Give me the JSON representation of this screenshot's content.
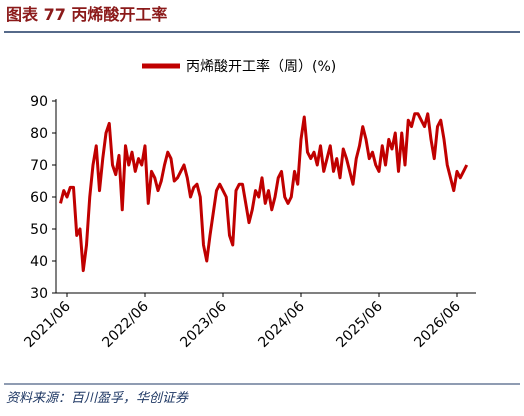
{
  "header": {
    "title": "图表 77 丙烯酸开工率"
  },
  "chart_data": {
    "type": "line",
    "categories": [
      null,
      null,
      "2021/06",
      null,
      null,
      null,
      null,
      null,
      null,
      null,
      null,
      null,
      null,
      null,
      null,
      null,
      null,
      null,
      null,
      null,
      null,
      null,
      null,
      null,
      null,
      null,
      "2022/06",
      null,
      null,
      null,
      null,
      null,
      null,
      null,
      null,
      null,
      null,
      null,
      null,
      null,
      null,
      null,
      null,
      null,
      null,
      null,
      null,
      null,
      null,
      null,
      "2023/06",
      null,
      null,
      null,
      null,
      null,
      null,
      null,
      null,
      null,
      null,
      null,
      null,
      null,
      null,
      null,
      null,
      null,
      null,
      null,
      null,
      null,
      null,
      null,
      "2024/06",
      null,
      null,
      null,
      null,
      null,
      null,
      null,
      null,
      null,
      null,
      null,
      null,
      null,
      null,
      null,
      null,
      null,
      null,
      null,
      null,
      null,
      null,
      null,
      "2025/06",
      null,
      null,
      null,
      null,
      null,
      null,
      null,
      null,
      null,
      null,
      null,
      null,
      null,
      null,
      null,
      null,
      null,
      null,
      null,
      null,
      null,
      null,
      null,
      "2026/06",
      null,
      null,
      null
    ],
    "series": [
      {
        "name": "丙烯酸开工率（周）(%)",
        "color": "#c00000",
        "values": [
          58,
          62,
          60,
          63,
          63,
          48,
          50,
          37,
          45,
          60,
          70,
          76,
          62,
          72,
          80,
          83,
          70,
          67,
          73,
          56,
          76,
          70,
          74,
          68,
          72,
          70,
          76,
          58,
          68,
          66,
          62,
          65,
          70,
          74,
          72,
          65,
          66,
          68,
          70,
          66,
          60,
          63,
          64,
          60,
          45,
          40,
          48,
          55,
          62,
          64,
          62,
          60,
          48,
          45,
          62,
          64,
          64,
          58,
          52,
          56,
          62,
          60,
          66,
          58,
          62,
          56,
          60,
          66,
          68,
          60,
          58,
          60,
          68,
          64,
          78,
          85,
          74,
          72,
          74,
          70,
          76,
          68,
          72,
          76,
          68,
          72,
          66,
          75,
          72,
          68,
          64,
          72,
          76,
          82,
          78,
          72,
          74,
          70,
          68,
          76,
          70,
          78,
          75,
          80,
          68,
          80,
          70,
          84,
          82,
          86,
          86,
          84,
          82,
          86,
          78,
          72,
          82,
          84,
          78,
          70,
          66,
          62,
          68,
          66,
          68,
          70
        ]
      }
    ],
    "ylim": [
      30,
      90
    ],
    "yticks": [
      30,
      40,
      50,
      60,
      70,
      80,
      90
    ]
  },
  "footer": {
    "source": "资料来源：百川盈孚，华创证券"
  }
}
